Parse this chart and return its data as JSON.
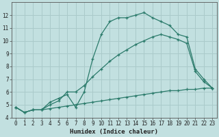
{
  "xlabel": "Humidex (Indice chaleur)",
  "bg_color": "#c2e0e0",
  "grid_color": "#aacaca",
  "line_color": "#2a7a6a",
  "xlim": [
    -0.5,
    23.5
  ],
  "ylim": [
    4,
    13
  ],
  "xticks": [
    0,
    1,
    2,
    3,
    4,
    5,
    6,
    7,
    8,
    9,
    10,
    11,
    12,
    13,
    14,
    15,
    16,
    17,
    18,
    19,
    20,
    21,
    22,
    23
  ],
  "yticks": [
    4,
    5,
    6,
    7,
    8,
    9,
    10,
    11,
    12
  ],
  "line1_x": [
    0,
    1,
    2,
    3,
    4,
    5,
    6,
    7,
    8,
    9,
    10,
    11,
    12,
    13,
    14,
    15,
    16,
    17,
    18,
    19,
    20,
    21,
    22,
    23
  ],
  "line1_y": [
    4.8,
    4.4,
    4.6,
    4.6,
    4.7,
    4.8,
    4.9,
    5.0,
    5.1,
    5.2,
    5.3,
    5.4,
    5.5,
    5.6,
    5.7,
    5.8,
    5.9,
    6.0,
    6.1,
    6.1,
    6.2,
    6.2,
    6.3,
    6.3
  ],
  "line2_x": [
    0,
    1,
    2,
    3,
    4,
    5,
    6,
    7,
    8,
    9,
    10,
    11,
    12,
    13,
    14,
    15,
    16,
    17,
    18,
    19,
    20,
    21,
    22,
    23
  ],
  "line2_y": [
    4.8,
    4.4,
    4.6,
    4.6,
    5.0,
    5.3,
    6.0,
    6.0,
    6.5,
    7.2,
    7.8,
    8.4,
    8.9,
    9.3,
    9.7,
    10.0,
    10.3,
    10.5,
    10.3,
    10.1,
    9.8,
    7.6,
    6.8,
    6.3
  ],
  "line3_x": [
    0,
    1,
    2,
    3,
    4,
    5,
    6,
    7,
    8,
    9,
    10,
    11,
    12,
    13,
    14,
    15,
    16,
    17,
    18,
    19,
    20,
    21,
    22,
    23
  ],
  "line3_y": [
    4.8,
    4.4,
    4.6,
    4.6,
    5.2,
    5.5,
    5.8,
    4.8,
    6.0,
    8.6,
    10.5,
    11.5,
    11.8,
    11.8,
    12.0,
    12.2,
    11.8,
    11.5,
    11.2,
    10.5,
    10.3,
    7.8,
    7.0,
    6.3
  ]
}
